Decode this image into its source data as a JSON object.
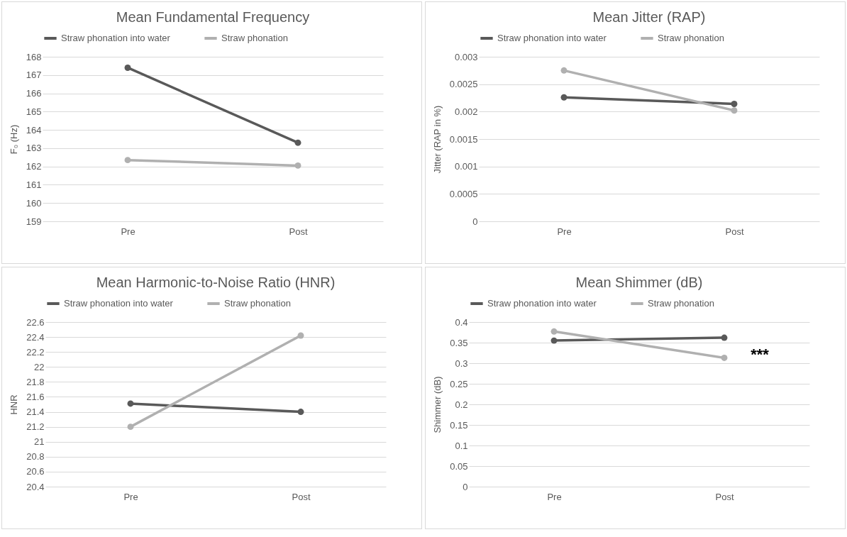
{
  "chart_data": [
    {
      "type": "line",
      "title": "Mean Fundamental Frequency",
      "ylabel": "F₀ (Hz)",
      "categories": [
        "Pre",
        "Post"
      ],
      "series": [
        {
          "name": "Straw phonation into water",
          "color": "#595959",
          "values": [
            167.4,
            163.3
          ]
        },
        {
          "name": "Straw phonation",
          "color": "#b0b0b0",
          "values": [
            162.35,
            162.05
          ]
        }
      ],
      "ylim": [
        159,
        168
      ],
      "yticks": [
        159,
        160,
        161,
        162,
        163,
        164,
        165,
        166,
        167,
        168
      ],
      "grid": "y",
      "legend": "top",
      "marker": "circle"
    },
    {
      "type": "line",
      "title": "Mean Jitter (RAP)",
      "ylabel": "Jitter (RAP in %)",
      "categories": [
        "Pre",
        "Post"
      ],
      "series": [
        {
          "name": "Straw phonation into water",
          "color": "#595959",
          "values": [
            0.00226,
            0.00214
          ]
        },
        {
          "name": "Straw phonation",
          "color": "#b0b0b0",
          "values": [
            0.00275,
            0.00202
          ]
        }
      ],
      "ylim": [
        0,
        0.003
      ],
      "yticks": [
        0,
        0.0005,
        0.001,
        0.0015,
        0.002,
        0.0025,
        0.003
      ],
      "grid": "y",
      "legend": "top",
      "marker": "circle"
    },
    {
      "type": "line",
      "title": "Mean Harmonic-to-Noise Ratio (HNR)",
      "ylabel": "HNR",
      "categories": [
        "Pre",
        "Post"
      ],
      "series": [
        {
          "name": "Straw phonation into water",
          "color": "#595959",
          "values": [
            21.51,
            21.4
          ]
        },
        {
          "name": "Straw phonation",
          "color": "#b0b0b0",
          "values": [
            21.2,
            22.42
          ]
        }
      ],
      "ylim": [
        20.4,
        22.6
      ],
      "yticks": [
        20.4,
        20.6,
        20.8,
        21,
        21.2,
        21.4,
        21.6,
        21.8,
        22,
        22.2,
        22.4,
        22.6
      ],
      "grid": "y",
      "legend": "top",
      "marker": "circle"
    },
    {
      "type": "line",
      "title": "Mean Shimmer (dB)",
      "ylabel": "Shimmer (dB)",
      "categories": [
        "Pre",
        "Post"
      ],
      "series": [
        {
          "name": "Straw phonation into water",
          "color": "#595959",
          "values": [
            0.355,
            0.362
          ]
        },
        {
          "name": "Straw phonation",
          "color": "#b0b0b0",
          "values": [
            0.377,
            0.313
          ]
        }
      ],
      "ylim": [
        0,
        0.4
      ],
      "yticks": [
        0,
        0.05,
        0.1,
        0.15,
        0.2,
        0.25,
        0.3,
        0.35,
        0.4
      ],
      "grid": "y",
      "legend": "top",
      "marker": "circle",
      "annotations": [
        {
          "text": "***",
          "x": "Post",
          "y": 0.32
        }
      ]
    }
  ]
}
